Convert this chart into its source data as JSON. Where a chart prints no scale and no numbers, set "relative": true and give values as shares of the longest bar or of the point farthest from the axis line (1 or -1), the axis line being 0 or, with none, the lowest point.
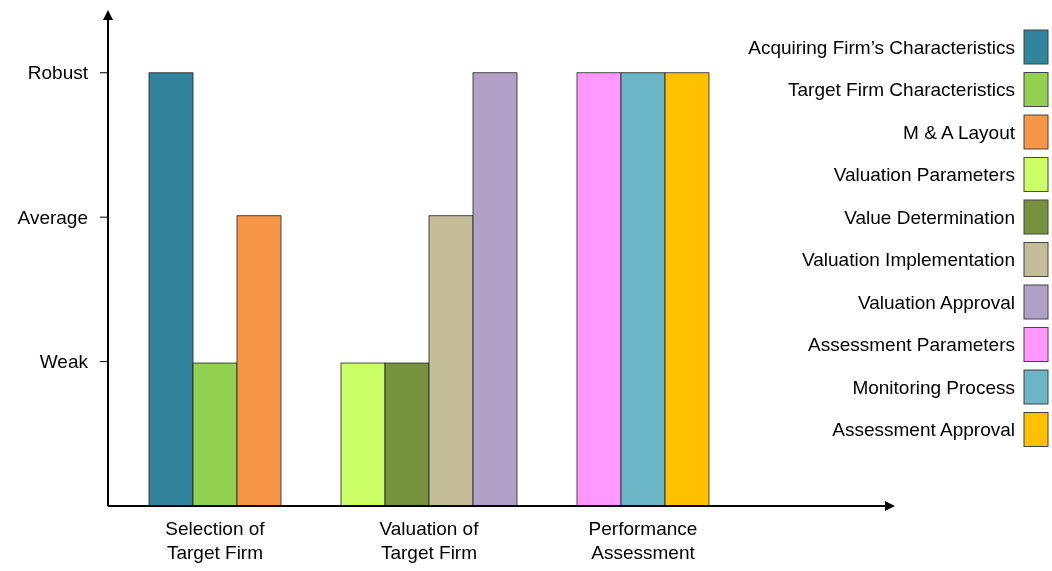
{
  "chart_data": {
    "type": "bar",
    "categories": [
      "Selection of Target Firm",
      "Valuation of Target Firm",
      "Performance Assessment"
    ],
    "relative": true,
    "annotations": [
      "Weak",
      "Average",
      "Robust"
    ],
    "legend": "right",
    "series": [
      {
        "name": "Acquiring Firm’s Characteristics",
        "color": "#31849b",
        "values": [
          1,
          null,
          null
        ]
      },
      {
        "name": "Target Firm Characteristics",
        "color": "#92d050",
        "values": [
          0.33,
          null,
          null
        ]
      },
      {
        "name": "M & A Layout",
        "color": "#f79646",
        "values": [
          0.67,
          null,
          null
        ]
      },
      {
        "name": "Valuation Parameters",
        "color": "#ccff66",
        "values": [
          null,
          0.33,
          null
        ]
      },
      {
        "name": "Value Determination",
        "color": "#76923c",
        "values": [
          null,
          0.33,
          null
        ]
      },
      {
        "name": "Valuation Implementation",
        "color": "#c4bd97",
        "values": [
          null,
          0.67,
          null
        ]
      },
      {
        "name": "Valuation Approval",
        "color": "#b2a1c7",
        "values": [
          null,
          1,
          null
        ]
      },
      {
        "name": "Assessment Parameters",
        "color": "#ff99ff",
        "values": [
          null,
          null,
          1
        ]
      },
      {
        "name": "Monitoring Process",
        "color": "#6ab5c6",
        "values": [
          null,
          null,
          1
        ]
      },
      {
        "name": "Assessment Approval",
        "color": "#ffc000",
        "values": [
          null,
          null,
          1
        ]
      }
    ]
  }
}
